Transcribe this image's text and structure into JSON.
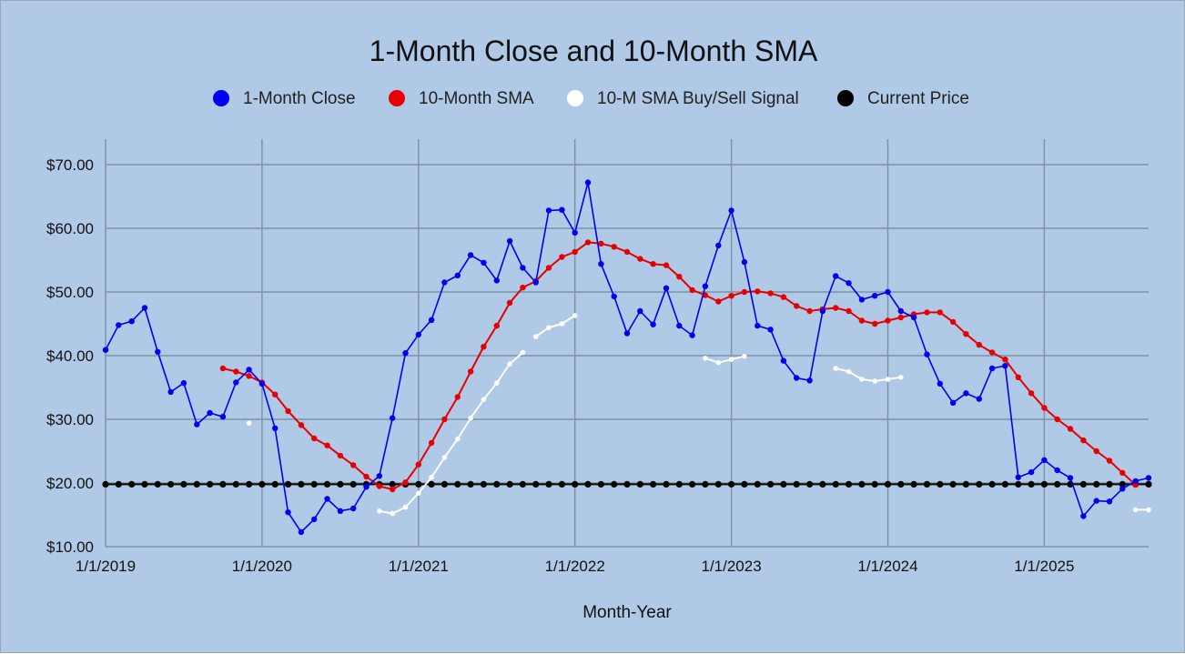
{
  "chart_data": {
    "type": "line",
    "title": "1-Month Close and 10-Month SMA",
    "xlabel": "Month-Year",
    "ylabel": "",
    "ylim": [
      10,
      74
    ],
    "yticks": [
      10,
      20,
      30,
      40,
      50,
      60,
      70
    ],
    "ytick_labels": [
      "$10.00",
      "$20.00",
      "$30.00",
      "$40.00",
      "$50.00",
      "$60.00",
      "$70.00"
    ],
    "xlim": [
      0,
      80
    ],
    "xticks": [
      0,
      12,
      24,
      36,
      48,
      60,
      72
    ],
    "xtick_labels": [
      "1/1/2019",
      "1/1/2020",
      "1/1/2021",
      "1/1/2022",
      "1/1/2023",
      "1/1/2024",
      "1/1/2025"
    ],
    "grid": true,
    "legend_position": "top",
    "colors": {
      "close": "#0000ee",
      "sma": "#e60000",
      "signal": "#ffffff",
      "current": "#000000",
      "background": "#afc9e6",
      "grid": "#7f93a6"
    },
    "series": [
      {
        "name": "1-Month Close",
        "key": "close",
        "x": [
          0,
          1,
          2,
          3,
          4,
          5,
          6,
          7,
          8,
          9,
          10,
          11,
          12,
          13,
          14,
          15,
          16,
          17,
          18,
          19,
          20,
          21,
          22,
          23,
          24,
          25,
          26,
          27,
          28,
          29,
          30,
          31,
          32,
          33,
          34,
          35,
          36,
          37,
          38,
          39,
          40,
          41,
          42,
          43,
          44,
          45,
          46,
          47,
          48,
          49,
          50,
          51,
          52,
          53,
          54,
          55,
          56,
          57,
          58,
          59,
          60,
          61,
          62,
          63,
          64,
          65,
          66,
          67,
          68,
          69,
          70,
          71,
          72,
          73,
          74,
          75,
          76,
          77,
          78,
          79,
          80
        ],
        "values": [
          40.9,
          44.8,
          45.4,
          47.5,
          40.6,
          34.3,
          35.7,
          29.2,
          31.0,
          30.4,
          35.8,
          37.8,
          35.6,
          28.6,
          15.4,
          12.3,
          14.3,
          17.5,
          15.6,
          16.0,
          19.4,
          21.1,
          30.2,
          40.4,
          43.3,
          45.6,
          51.5,
          52.6,
          55.8,
          54.6,
          51.8,
          58.0,
          53.8,
          51.5,
          62.8,
          62.9,
          59.3,
          67.2,
          54.4,
          49.3,
          43.5,
          47.0,
          44.9,
          50.6,
          44.7,
          43.2,
          50.9,
          57.3,
          62.8,
          54.7,
          44.7,
          44.1,
          39.2,
          36.5,
          36.1,
          47.0,
          52.5,
          51.4,
          48.8,
          49.4,
          50.0,
          47.0,
          46.0,
          40.2,
          35.6,
          32.6,
          34.1,
          33.2,
          38.0,
          38.4,
          20.9,
          21.7,
          23.6,
          22.0,
          20.8,
          14.8,
          17.2,
          17.1,
          19.1,
          20.3,
          20.8
        ]
      },
      {
        "name": "10-Month SMA",
        "key": "sma",
        "x": [
          9,
          10,
          11,
          12,
          13,
          14,
          15,
          16,
          17,
          18,
          19,
          20,
          21,
          22,
          23,
          24,
          25,
          26,
          27,
          28,
          29,
          30,
          31,
          32,
          33,
          34,
          35,
          36,
          37,
          38,
          39,
          40,
          41,
          42,
          43,
          44,
          45,
          46,
          47,
          48,
          49,
          50,
          51,
          52,
          53,
          54,
          55,
          56,
          57,
          58,
          59,
          60,
          61,
          62,
          63,
          64,
          65,
          66,
          67,
          68,
          69,
          70,
          71,
          72,
          73,
          74,
          75,
          76,
          77,
          78,
          79
        ],
        "values": [
          38.0,
          37.5,
          36.8,
          35.8,
          33.9,
          31.3,
          29.1,
          27.0,
          25.9,
          24.3,
          22.8,
          21.0,
          19.5,
          19.0,
          20.1,
          22.9,
          26.3,
          30.0,
          33.5,
          37.5,
          41.4,
          44.7,
          48.3,
          50.7,
          51.7,
          53.8,
          55.5,
          56.3,
          57.8,
          57.6,
          57.1,
          56.3,
          55.2,
          54.4,
          54.2,
          52.4,
          50.3,
          49.5,
          48.5,
          49.4,
          50.0,
          50.1,
          49.8,
          49.2,
          47.8,
          47.0,
          47.3,
          47.5,
          47.0,
          45.5,
          45.0,
          45.5,
          46.0,
          46.5,
          46.8,
          46.8,
          45.3,
          43.4,
          41.7,
          40.5,
          39.4,
          36.6,
          34.1,
          31.8,
          30.0,
          28.5,
          26.7,
          25.0,
          23.5,
          21.6,
          19.7
        ]
      },
      {
        "name": "10-M SMA Buy/Sell Signal",
        "key": "signal",
        "segments": [
          {
            "x": [
              11
            ],
            "values": [
              29.4
            ]
          },
          {
            "x": [
              21,
              22,
              23,
              24,
              25,
              26,
              27,
              28,
              29,
              30,
              31,
              32
            ],
            "values": [
              15.6,
              15.2,
              16.2,
              18.4,
              20.9,
              24.0,
              26.9,
              30.2,
              33.1,
              35.7,
              38.7,
              40.5
            ]
          },
          {
            "x": [
              33,
              34,
              35,
              36
            ],
            "values": [
              43.0,
              44.4,
              45.0,
              46.3
            ]
          },
          {
            "x": [
              46,
              47,
              48,
              49
            ],
            "values": [
              39.6,
              38.9,
              39.4,
              39.9
            ]
          },
          {
            "x": [
              56,
              57,
              58,
              59,
              60,
              61
            ],
            "values": [
              38.0,
              37.5,
              36.3,
              36.0,
              36.3,
              36.6
            ]
          },
          {
            "x": [
              79,
              80
            ],
            "values": [
              15.8,
              15.8
            ]
          }
        ]
      },
      {
        "name": "Current Price",
        "key": "current",
        "x": [
          0,
          1,
          2,
          3,
          4,
          5,
          6,
          7,
          8,
          9,
          10,
          11,
          12,
          13,
          14,
          15,
          16,
          17,
          18,
          19,
          20,
          21,
          22,
          23,
          24,
          25,
          26,
          27,
          28,
          29,
          30,
          31,
          32,
          33,
          34,
          35,
          36,
          37,
          38,
          39,
          40,
          41,
          42,
          43,
          44,
          45,
          46,
          47,
          48,
          49,
          50,
          51,
          52,
          53,
          54,
          55,
          56,
          57,
          58,
          59,
          60,
          61,
          62,
          63,
          64,
          65,
          66,
          67,
          68,
          69,
          70,
          71,
          72,
          73,
          74,
          75,
          76,
          77,
          78,
          79,
          80
        ],
        "value": 19.8
      }
    ]
  }
}
